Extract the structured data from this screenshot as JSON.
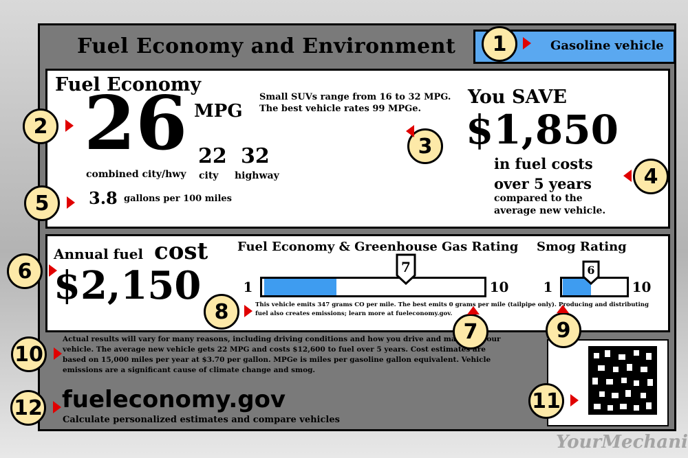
{
  "header": {
    "title": "Fuel Economy and Environment",
    "vehicle_type": "Gasoline vehicle"
  },
  "fuel_economy": {
    "heading": "Fuel Economy",
    "combined_mpg": "26",
    "mpg_unit": "MPG",
    "combined_label": "combined city/hwy",
    "city_mpg": "22",
    "city_label": "city",
    "highway_mpg": "32",
    "highway_label": "highway",
    "range_line1": "Small SUVs range from 16 to 32 MPG.",
    "range_line2": "The best vehicle rates 99 MPGe.",
    "gallons_value": "3.8",
    "gallons_label": "gallons per 100 miles"
  },
  "savings": {
    "heading": "You SAVE",
    "amount": "$1,850",
    "line1": "in fuel costs",
    "line2": "over 5 years",
    "line3": "compared to the",
    "line4": "average new vehicle."
  },
  "annual_cost": {
    "label": "Annual fuel",
    "label_big": "cost",
    "amount": "$2,150"
  },
  "ghg_rating": {
    "heading": "Fuel Economy & Greenhouse Gas Rating",
    "min": "1",
    "max": "10",
    "value": "7",
    "fill_fraction": 0.33,
    "note_line1": "This vehicle emits 347 grams CO per mile. The best emits 0 grams per mile  (tailpipe only). Producing and distributing",
    "note_line2": "fuel also creates emissions; learn more at fueleconomy.gov."
  },
  "smog_rating": {
    "heading": "Smog Rating",
    "min": "1",
    "max": "10",
    "value": "6",
    "fill_fraction": 0.45
  },
  "disclaimer": {
    "line1": "Actual results will vary for many reasons, including driving conditions and how you drive and maintain your",
    "line2": "vehicle. The average new vehicle gets 22 MPG and costs $12,600 to fuel over 5 years. Cost estimates are",
    "line3": "based on 15,000 miles per year at $3.70 per gallon. MPGe is miles per gasoline gallon equivalent. Vehicle",
    "line4": "emissions are a significant cause of climate change and smog."
  },
  "footer": {
    "site": "fueleconomy.gov",
    "tagline": "Calculate personalized estimates and compare vehicles"
  },
  "watermark": "YourMechanic",
  "callouts": [
    "1",
    "2",
    "3",
    "4",
    "5",
    "6",
    "7",
    "8",
    "9",
    "10",
    "11",
    "12"
  ],
  "colors": {
    "accent_blue": "#3e9cf0",
    "badge_fill": "#fde9a8",
    "arrow_red": "#e00000",
    "frame_gray": "#7a7a7a"
  }
}
